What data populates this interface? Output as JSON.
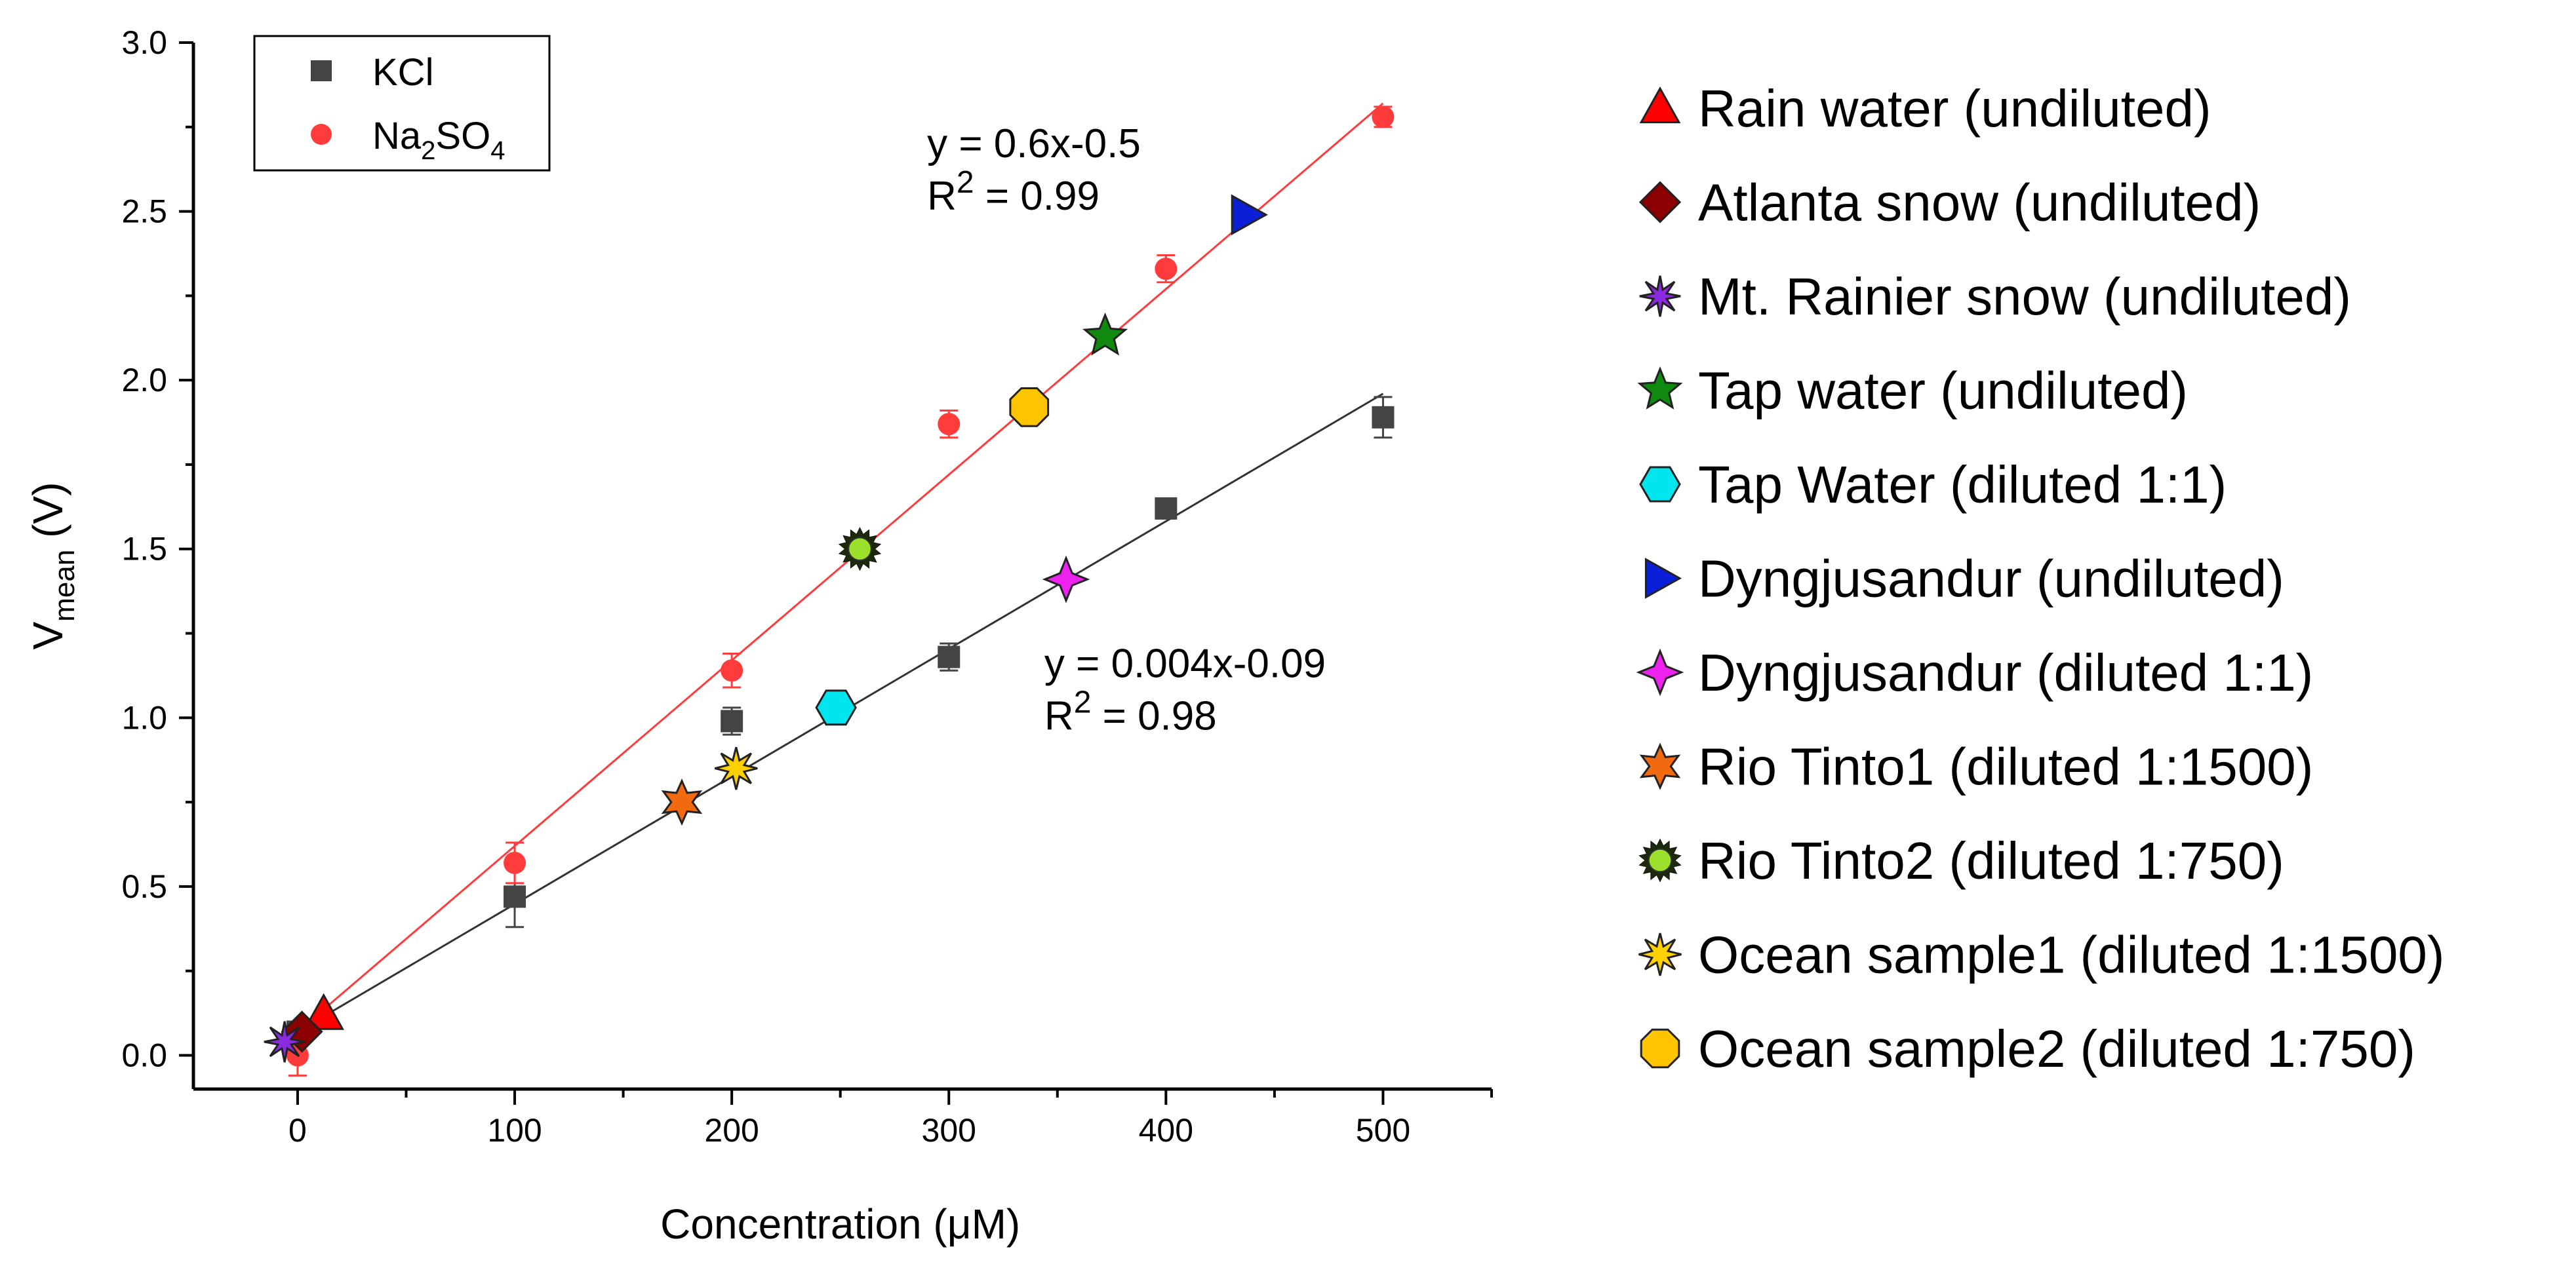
{
  "chart_data": {
    "type": "scatter",
    "xlabel": "Concentration (μM)",
    "ylabel": {
      "main": "V",
      "sub": "mean",
      "unit": " (V)"
    },
    "xlim": [
      -48,
      550
    ],
    "ylim": [
      -0.1,
      3.0
    ],
    "x_ticks": [
      0,
      100,
      200,
      300,
      400,
      500
    ],
    "x_tick_labels": [
      "0",
      "100",
      "200",
      "300",
      "400",
      "500"
    ],
    "y_ticks": [
      0,
      0.5,
      1.0,
      1.5,
      2.0,
      2.5,
      3.0
    ],
    "y_tick_labels": [
      "0.0",
      "0.5",
      "1.0",
      "1.5",
      "2.0",
      "2.5",
      "3.0"
    ],
    "grid": false,
    "legend_placement": "top-left",
    "series": [
      {
        "name": "KCl",
        "legend_label": {
          "base": "KCl",
          "sub": ""
        },
        "marker": "square",
        "color": "#444444",
        "points": [
          {
            "x": 0,
            "y": 0.07,
            "err": 0.02
          },
          {
            "x": 100,
            "y": 0.47,
            "err": 0.09
          },
          {
            "x": 200,
            "y": 0.99,
            "err": 0.04
          },
          {
            "x": 300,
            "y": 1.18,
            "err": 0.04
          },
          {
            "x": 400,
            "y": 1.62,
            "err": 0.03
          },
          {
            "x": 500,
            "y": 1.89,
            "err": 0.06
          }
        ],
        "fit": {
          "x_range": [
            0,
            500
          ],
          "y_range": [
            0.07,
            1.96
          ],
          "color": "#333333"
        }
      },
      {
        "name": "Na2SO4",
        "legend_label": {
          "base": "Na",
          "sub": "2",
          "base2": "SO",
          "sub2": "4"
        },
        "marker": "circle",
        "color": "#ff3b3b",
        "points": [
          {
            "x": 0,
            "y": 0.0,
            "err": 0.06
          },
          {
            "x": 100,
            "y": 0.57,
            "err": 0.06
          },
          {
            "x": 200,
            "y": 1.14,
            "err": 0.05
          },
          {
            "x": 300,
            "y": 1.87,
            "err": 0.04
          },
          {
            "x": 400,
            "y": 2.33,
            "err": 0.04
          },
          {
            "x": 500,
            "y": 2.78,
            "err": 0.03
          }
        ],
        "fit": {
          "x_range": [
            0,
            500
          ],
          "y_range": [
            0.07,
            2.82
          ],
          "color": "#ff3b3b"
        }
      }
    ],
    "samples": [
      {
        "name": "Rain water (undiluted)",
        "marker": "triangle-up",
        "color": "#ff0000",
        "x": 12,
        "y": 0.12
      },
      {
        "name": "Atlanta snow (undiluted)",
        "marker": "diamond",
        "color": "#8b0000",
        "x": 2,
        "y": 0.07
      },
      {
        "name": "Mt. Rainier snow (undiluted)",
        "marker": "star-burst",
        "color": "#8a2be2",
        "x": -6,
        "y": 0.04
      },
      {
        "name": "Tap water (undiluted)",
        "marker": "star5",
        "color": "#0f8a0f",
        "x": 372,
        "y": 2.13
      },
      {
        "name": "Tap Water (diluted 1:1)",
        "marker": "hexagon",
        "color": "#00e5ee",
        "x": 248,
        "y": 1.03
      },
      {
        "name": "Dyngjusandur (undiluted)",
        "marker": "triangle-right",
        "color": "#0a1fd6",
        "x": 437,
        "y": 2.49
      },
      {
        "name": "Dyngjusandur (diluted 1:1)",
        "marker": "diamond-star",
        "color": "#ee22ee",
        "x": 354,
        "y": 1.41
      },
      {
        "name": "Rio Tinto1 (diluted 1:1500)",
        "marker": "star6",
        "color": "#f26a10",
        "x": 177,
        "y": 0.75
      },
      {
        "name": "Rio Tinto2 (diluted 1:750)",
        "marker": "sun",
        "color": "#9be02b",
        "x": 259,
        "y": 1.5
      },
      {
        "name": "Ocean sample1 (diluted 1:1500)",
        "marker": "star8",
        "color": "#ffd000",
        "x": 202,
        "y": 0.85
      },
      {
        "name": "Ocean sample2 (diluted 1:750)",
        "marker": "octagon",
        "color": "#ffc400",
        "x": 337,
        "y": 1.92
      }
    ],
    "annotations": [
      {
        "line1": "y = 0.6x-0.5",
        "r2_prefix": "R",
        "r2_exp": "2",
        "r2_value": " = 0.99",
        "x": 290,
        "y": 2.66
      },
      {
        "line1": "y = 0.004x-0.09",
        "r2_prefix": "R",
        "r2_exp": "2",
        "r2_value": " = 0.98",
        "x": 344,
        "y": 1.12
      }
    ]
  }
}
